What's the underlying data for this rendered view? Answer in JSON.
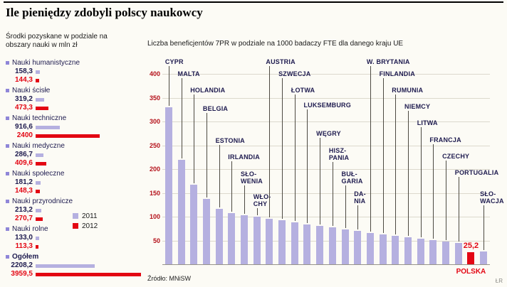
{
  "page": {
    "title": "Ile pieniędzy zdobyli polscy naukowcy",
    "source": "Źródło: MNiSW",
    "credit": "ŁR"
  },
  "colors": {
    "bar_2011": "#b5b0e0",
    "bar_2012": "#e30613",
    "highlight": "#e30613",
    "axis_tick": "#b5121b",
    "label_text": "#1e1b4f"
  },
  "chart_data": [
    {
      "type": "bar",
      "orientation": "horizontal",
      "title": "Środki pozyskane w podziale na obszary nauki w mln zł",
      "unit": "mln zł",
      "series": [
        {
          "name": "2011"
        },
        {
          "name": "2012"
        }
      ],
      "max_value": 3959.5,
      "categories": [
        {
          "name": "Nauki humanistyczne",
          "v2011": 158.3,
          "v2012": 144.3,
          "d2011": "158,3",
          "d2012": "144,3"
        },
        {
          "name": "Nauki ścisłe",
          "v2011": 319.2,
          "v2012": 473.3,
          "d2011": "319,2",
          "d2012": "473,3"
        },
        {
          "name": "Nauki techniczne",
          "v2011": 916.6,
          "v2012": 2400,
          "d2011": "916,6",
          "d2012": "2400"
        },
        {
          "name": "Nauki medyczne",
          "v2011": 286.7,
          "v2012": 409.6,
          "d2011": "286,7",
          "d2012": "409,6"
        },
        {
          "name": "Nauki społeczne",
          "v2011": 181.2,
          "v2012": 148.3,
          "d2011": "181,2",
          "d2012": "148,3"
        },
        {
          "name": "Nauki przyrodnicze",
          "v2011": 213.2,
          "v2012": 270.7,
          "d2011": "213,2",
          "d2012": "270,7"
        },
        {
          "name": "Nauki rolne",
          "v2011": 133.0,
          "v2012": 113.3,
          "d2011": "133,0",
          "d2012": "113,3"
        },
        {
          "name": "Ogółem",
          "bold": true,
          "v2011": 2208.2,
          "v2012": 3959.5,
          "d2011": "2208,2",
          "d2012": "3959,5"
        }
      ]
    },
    {
      "type": "bar",
      "title": "Liczba beneficjentów 7PR w podziale na 1000 badaczy FTE dla danego kraju UE",
      "ylim": [
        0,
        400
      ],
      "y_ticks": [
        400,
        350,
        300,
        250,
        200,
        150,
        100,
        50
      ],
      "grid": true,
      "countries": [
        {
          "name": "CYPR",
          "lines": [
            "CYPR"
          ],
          "value": 330,
          "label_top": 12
        },
        {
          "name": "MALTA",
          "lines": [
            "MALTA"
          ],
          "value": 220,
          "label_top": 29
        },
        {
          "name": "HOLANDIA",
          "lines": [
            "HOLANDIA"
          ],
          "value": 167,
          "label_top": 52
        },
        {
          "name": "BELGIA",
          "lines": [
            "BELGIA"
          ],
          "value": 138,
          "label_top": 78
        },
        {
          "name": "ESTONIA",
          "lines": [
            "ESTONIA"
          ],
          "value": 116,
          "label_top": 123
        },
        {
          "name": "IRLANDIA",
          "lines": [
            "IRLANDIA"
          ],
          "value": 108,
          "label_top": 146
        },
        {
          "name": "SŁOWENIA",
          "lines": [
            "SŁO-",
            "WENIA"
          ],
          "value": 103,
          "label_top": 170
        },
        {
          "name": "WŁOCHY",
          "lines": [
            "WŁO-",
            "CHY"
          ],
          "value": 100,
          "label_top": 202
        },
        {
          "name": "AUSTRIA",
          "lines": [
            "AUSTRIA"
          ],
          "value": 96,
          "label_top": 12
        },
        {
          "name": "SZWECJA",
          "lines": [
            "SZWECJA"
          ],
          "value": 92,
          "label_top": 29
        },
        {
          "name": "ŁOTWA",
          "lines": [
            "ŁOTWA"
          ],
          "value": 88,
          "label_top": 52
        },
        {
          "name": "LUKSEMBURG",
          "lines": [
            "LUKSEMBURG"
          ],
          "value": 84,
          "label_top": 73
        },
        {
          "name": "WĘGRY",
          "lines": [
            "WĘGRY"
          ],
          "value": 80,
          "label_top": 113
        },
        {
          "name": "HISZPANIA",
          "lines": [
            "HISZ-",
            "PANIA"
          ],
          "value": 77,
          "label_top": 137
        },
        {
          "name": "BUŁGARIA",
          "lines": [
            "BUŁ-",
            "GARIA"
          ],
          "value": 73,
          "label_top": 170
        },
        {
          "name": "DANIA",
          "lines": [
            "DA-",
            "NIA"
          ],
          "value": 70,
          "label_top": 198
        },
        {
          "name": "W. BRYTANIA",
          "lines": [
            "W. BRYTANIA"
          ],
          "value": 66,
          "label_top": 12
        },
        {
          "name": "FINLANDIA",
          "lines": [
            "FINLANDIA"
          ],
          "value": 63,
          "label_top": 29
        },
        {
          "name": "RUMUNIA",
          "lines": [
            "RUMUNIA"
          ],
          "value": 60,
          "label_top": 52
        },
        {
          "name": "NIEMCY",
          "lines": [
            "NIEMCY"
          ],
          "value": 57,
          "label_top": 75
        },
        {
          "name": "LITWA",
          "lines": [
            "LITWA"
          ],
          "value": 54,
          "label_top": 98
        },
        {
          "name": "FRANCJA",
          "lines": [
            "FRANCJA"
          ],
          "value": 51,
          "label_top": 122
        },
        {
          "name": "CZECHY",
          "lines": [
            "CZECHY"
          ],
          "value": 48,
          "label_top": 145
        },
        {
          "name": "PORTUGALIA",
          "lines": [
            "PORTUGALIA"
          ],
          "value": 45,
          "label_top": 168
        },
        {
          "name": "POLSKA",
          "lines": [
            "POLSKA"
          ],
          "value": 25.2,
          "display": "25,2",
          "highlight": true
        },
        {
          "name": "SŁOWACJA",
          "lines": [
            "SŁO-",
            "WACJA"
          ],
          "value": 27,
          "label_top": 198
        }
      ]
    }
  ]
}
